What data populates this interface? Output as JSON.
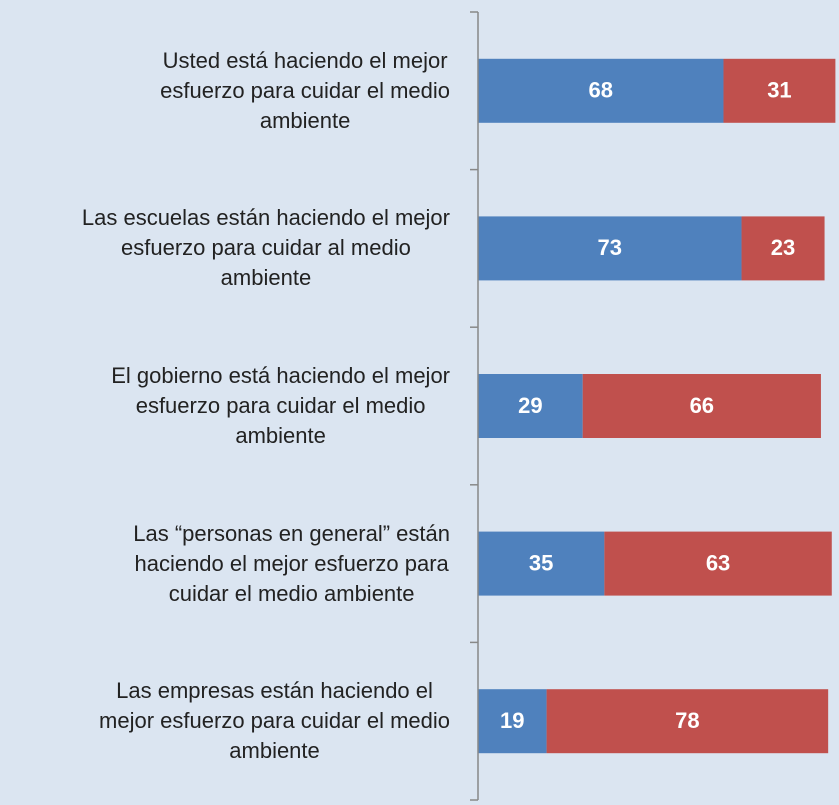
{
  "chart_data": {
    "type": "bar",
    "orientation": "horizontal",
    "stacked": true,
    "categories": [
      "Usted está haciendo el mejor\nesfuerzo para cuidar el medio\nambiente",
      "Las escuelas están haciendo el mejor\nesfuerzo para cuidar al medio\nambiente",
      "El gobierno está haciendo el mejor\nesfuerzo para cuidar el medio\nambiente",
      "Las “personas en general” están\nhaciendo el mejor esfuerzo para\ncuidar el medio ambiente",
      "Las empresas están haciendo el\nmejor esfuerzo para cuidar el medio\nambiente"
    ],
    "series": [
      {
        "color": "#4f81bd",
        "values": [
          68,
          73,
          29,
          35,
          19
        ]
      },
      {
        "color": "#c0504d",
        "values": [
          31,
          23,
          66,
          63,
          78
        ]
      }
    ],
    "xlim": [
      0,
      100
    ]
  }
}
